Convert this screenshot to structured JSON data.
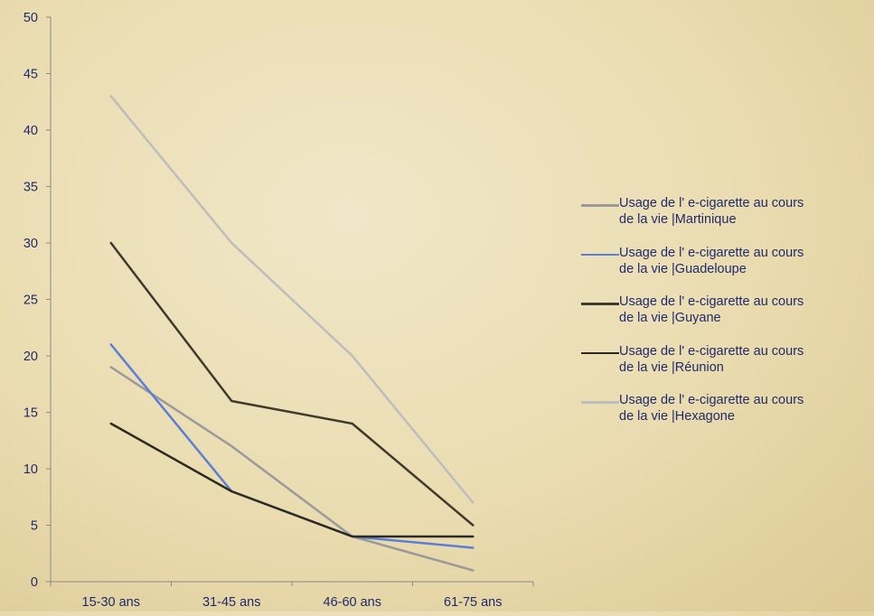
{
  "chart_data": {
    "type": "line",
    "categories": [
      "15-30 ans",
      "31-45 ans",
      "46-60 ans",
      "61-75 ans"
    ],
    "ylim": [
      0,
      50
    ],
    "yticks": [
      0,
      5,
      10,
      15,
      20,
      25,
      30,
      35,
      40,
      45,
      50
    ],
    "grid": false,
    "legend_position": "right",
    "series": [
      {
        "name": "Usage de l' e-cigarette au cours de la vie  |Martinique",
        "values": [
          19,
          12,
          4,
          1
        ],
        "color": "#9a9a9a"
      },
      {
        "name": "Usage de l' e-cigarette au cours de la vie  |Guadeloupe",
        "values": [
          21,
          8,
          4,
          3
        ],
        "color": "#5b7fd6"
      },
      {
        "name": "Usage de l' e-cigarette au cours de la vie  |Guyane",
        "values": [
          30,
          16,
          14,
          5
        ],
        "color": "#3f3a2c"
      },
      {
        "name": "Usage de l' e-cigarette au cours de la vie  |Réunion",
        "values": [
          14,
          8,
          4,
          4
        ],
        "color": "#2c2a1e"
      },
      {
        "name": "Usage de l' e-cigarette au cours de la vie  |Hexagone",
        "values": [
          43,
          30,
          20,
          7
        ],
        "color": "#bdbdbd"
      }
    ]
  }
}
